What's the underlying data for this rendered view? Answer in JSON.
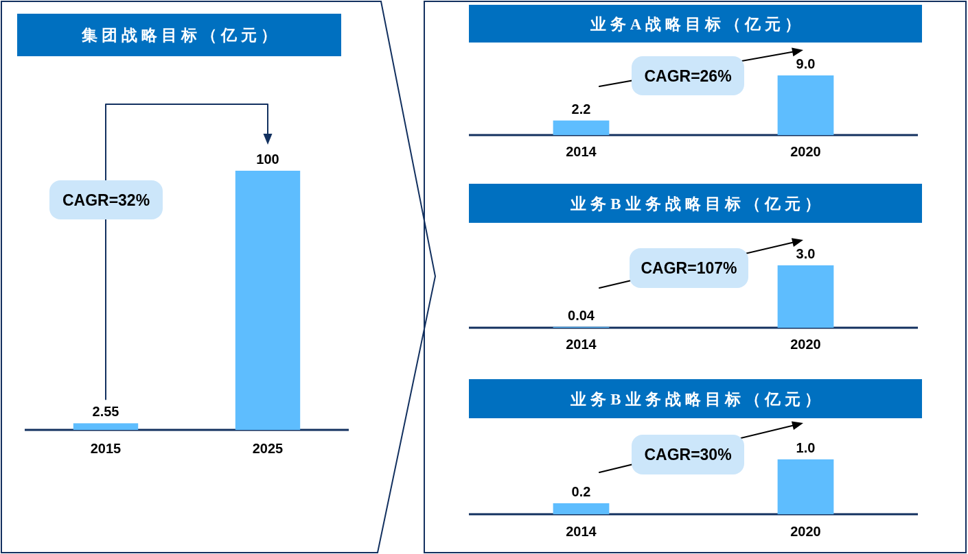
{
  "chart_data": [
    {
      "type": "bar",
      "title": "集团战略目标（亿元）",
      "categories": [
        "2015",
        "2025"
      ],
      "values": [
        2.55,
        100
      ],
      "color": "#5ebdfe",
      "data_labels": true,
      "annotations": [
        "CAGR=32%"
      ]
    },
    {
      "type": "bar",
      "title": "业务A战略目标（亿元）",
      "categories": [
        "2014",
        "2020"
      ],
      "values": [
        2.2,
        9.0
      ],
      "value_labels": [
        "2.2",
        "9.0"
      ],
      "color": "#5ebdfe",
      "annotations": [
        "CAGR=26%"
      ]
    },
    {
      "type": "bar",
      "title": "业务B业务战略目标（亿元）",
      "categories": [
        "2014",
        "2020"
      ],
      "values": [
        0.04,
        3.0
      ],
      "value_labels": [
        "0.04",
        "3.0"
      ],
      "color": "#5ebdfe",
      "annotations": [
        "CAGR=107%"
      ]
    },
    {
      "type": "bar",
      "title": "业务B业务战略目标（亿元）",
      "categories": [
        "2014",
        "2020"
      ],
      "values": [
        0.2,
        1.0
      ],
      "value_labels": [
        "0.2",
        "1.0"
      ],
      "color": "#5ebdfe",
      "annotations": [
        "CAGR=30%"
      ]
    }
  ]
}
